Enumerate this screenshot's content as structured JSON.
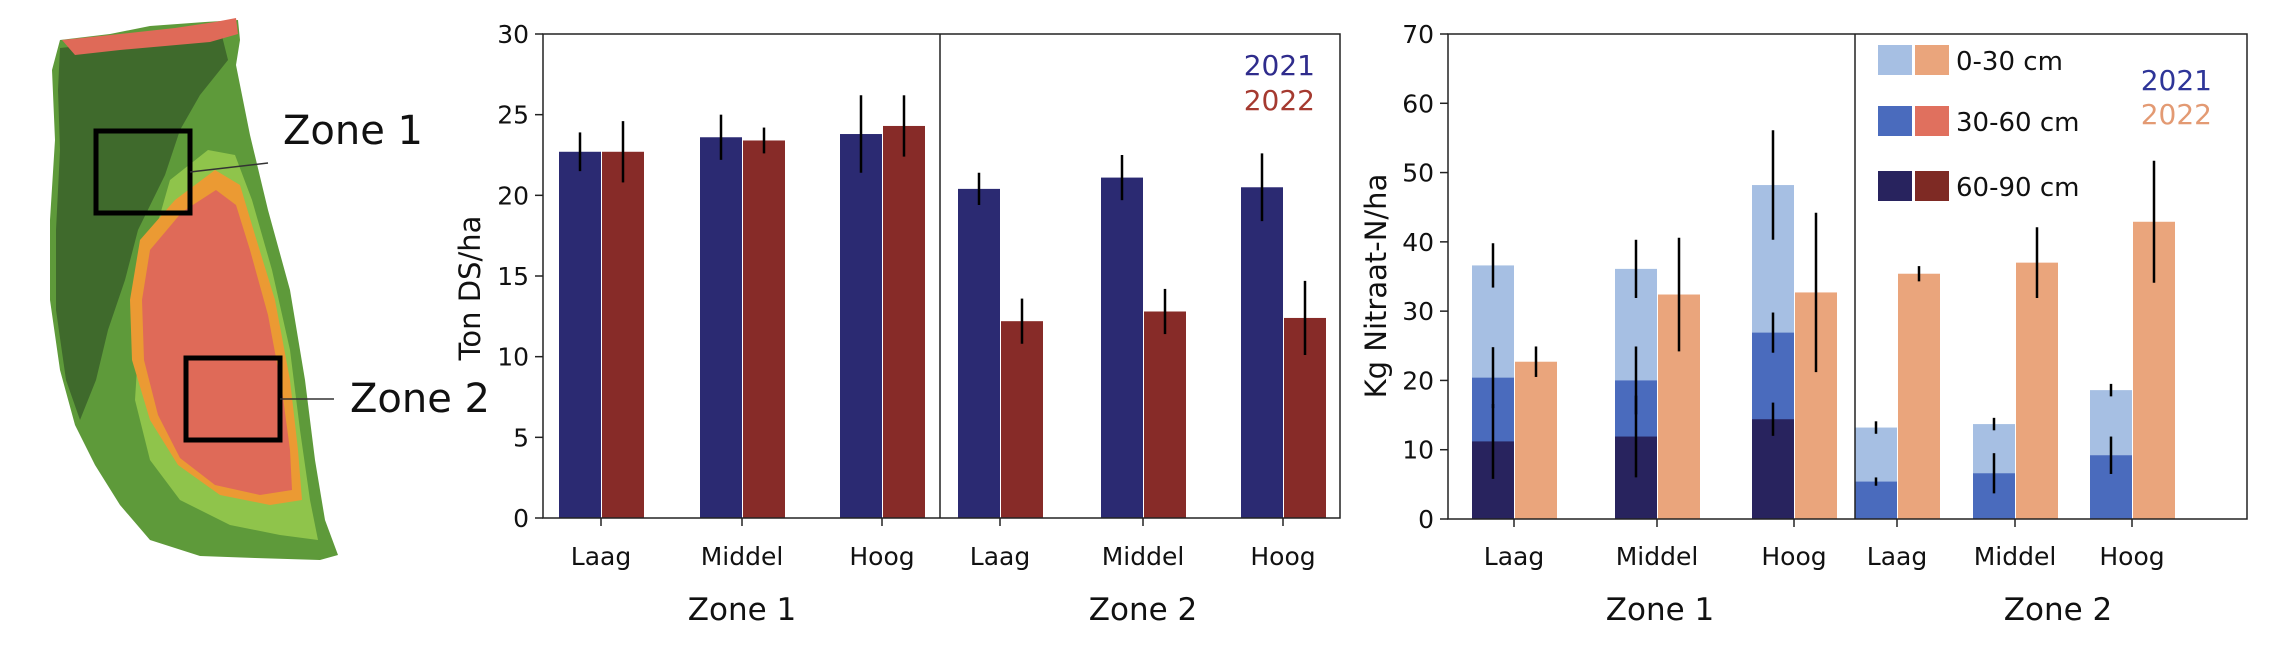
{
  "colors": {
    "blue_2021": "#2b2a72",
    "red_2022": "#872b28",
    "yr2021_label": "#2f2c8c",
    "yr2022_label": "#a53a30",
    "n2021_top": "#a6bfe3",
    "n2021_mid": "#4a6bbd",
    "n2021_bot": "#28235e",
    "n2022_top": "#eaa57c",
    "n2022_mid": "#e0705e",
    "n2022_bot": "#7e2a24",
    "n_label_2021": "#2e3598",
    "n_label_2022": "#e39a73",
    "map_dark_green": "#3f6a2c",
    "map_green": "#5e9a3a",
    "map_light_green": "#8fc44b",
    "map_orange": "#eb9a33",
    "map_red": "#df6a58"
  },
  "map": {
    "zone1_label": "Zone 1",
    "zone2_label": "Zone 2"
  },
  "chart_data": [
    {
      "type": "bar",
      "title": "",
      "ylabel": "Ton DS/ha",
      "ylim": [
        0,
        30
      ],
      "yticks": [
        0,
        5,
        10,
        15,
        20,
        25,
        30
      ],
      "ytick_labels": [
        "0",
        "5",
        "10",
        "15",
        "20",
        "25",
        "30"
      ],
      "legend": [
        "2021",
        "2022"
      ],
      "legend_placement": "top-right",
      "grid": false,
      "groups": [
        {
          "name": "Zone 1",
          "categories": [
            "Laag",
            "Middel",
            "Hoog"
          ],
          "series": [
            {
              "name": "2021",
              "values": [
                22.7,
                23.6,
                23.8
              ],
              "err": [
                1.2,
                1.4,
                2.4
              ]
            },
            {
              "name": "2022",
              "values": [
                22.7,
                23.4,
                24.3
              ],
              "err": [
                1.9,
                0.8,
                1.9
              ]
            }
          ]
        },
        {
          "name": "Zone 2",
          "categories": [
            "Laag",
            "Middel",
            "Hoog"
          ],
          "series": [
            {
              "name": "2021",
              "values": [
                20.4,
                21.1,
                20.5
              ],
              "err": [
                1.0,
                1.4,
                2.1
              ]
            },
            {
              "name": "2022",
              "values": [
                12.2,
                12.8,
                12.4
              ],
              "err": [
                1.4,
                1.4,
                2.3
              ]
            }
          ]
        }
      ]
    },
    {
      "type": "bar",
      "title": "",
      "ylabel": "Kg Nitraat-N/ha",
      "ylim": [
        0,
        70
      ],
      "yticks": [
        0,
        10,
        20,
        30,
        40,
        50,
        60,
        70
      ],
      "ytick_labels": [
        "0",
        "10",
        "20",
        "30",
        "40",
        "50",
        "60",
        "70"
      ],
      "legend": [
        "0-30 cm",
        "30-60 cm",
        "60-90 cm"
      ],
      "legend_years": [
        "2021",
        "2022"
      ],
      "legend_placement": "top-right",
      "grid": false,
      "groups": [
        {
          "name": "Zone 1",
          "categories": [
            "Laag",
            "Middel",
            "Hoog"
          ],
          "series": [
            {
              "name": "2021",
              "stack_totals": [
                [
                  11.2,
                  20.4,
                  36.6
                ],
                [
                  11.9,
                  20.0,
                  36.1
                ],
                [
                  14.4,
                  26.9,
                  48.2
                ]
              ],
              "err": [
                [
                  5.4,
                  4.4,
                  3.2
                ],
                [
                  5.9,
                  4.9,
                  4.2
                ],
                [
                  2.4,
                  2.9,
                  7.9
                ]
              ]
            },
            {
              "name": "2022",
              "stack_totals": [
                [
                  0,
                  0,
                  22.7
                ],
                [
                  0,
                  0,
                  32.4
                ],
                [
                  0,
                  0,
                  32.7
                ]
              ],
              "err": [
                [
                  0,
                  0,
                  2.2
                ],
                [
                  0,
                  0,
                  8.2
                ],
                [
                  0,
                  0,
                  11.5
                ]
              ]
            }
          ]
        },
        {
          "name": "Zone 2",
          "categories": [
            "Laag",
            "Middel",
            "Hoog"
          ],
          "series": [
            {
              "name": "2021",
              "stack_totals": [
                [
                  0,
                  5.4,
                  13.2
                ],
                [
                  0,
                  6.6,
                  13.7
                ],
                [
                  0,
                  9.2,
                  18.6
                ]
              ],
              "err": [
                [
                  0,
                  0.6,
                  0.9
                ],
                [
                  0,
                  2.9,
                  0.9
                ],
                [
                  0,
                  2.7,
                  0.9
                ]
              ]
            },
            {
              "name": "2022",
              "stack_totals": [
                [
                  0,
                  0,
                  35.4
                ],
                [
                  0,
                  0,
                  37.0
                ],
                [
                  0,
                  0,
                  42.9
                ]
              ],
              "err": [
                [
                  0,
                  0,
                  1.1
                ],
                [
                  0,
                  0,
                  5.1
                ],
                [
                  0,
                  0,
                  8.8
                ]
              ]
            }
          ]
        }
      ]
    }
  ]
}
